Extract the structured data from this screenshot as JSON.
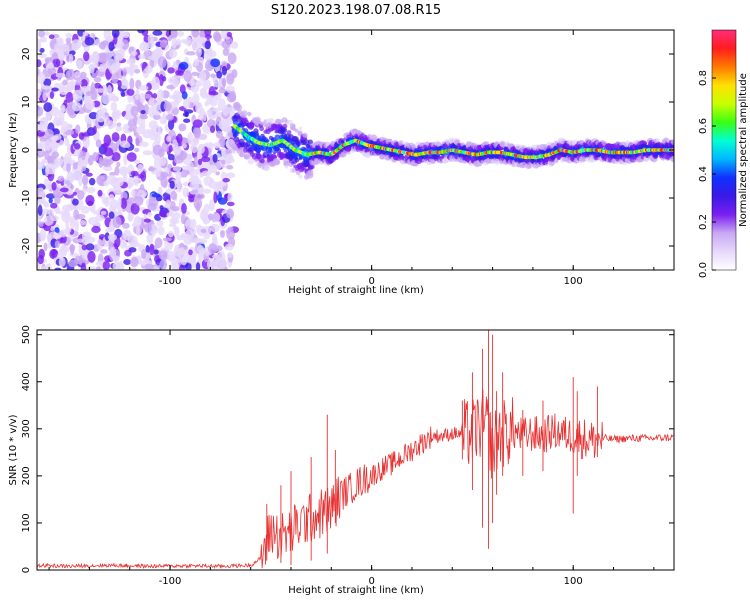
{
  "title": "S120.2023.198.07.08.R15",
  "chart_data": [
    {
      "type": "heatmap",
      "title": "S120.2023.198.07.08.R15",
      "xlabel": "Height of straight line (km)",
      "ylabel": "Frequency (Hz)",
      "xlim": [
        -166,
        150
      ],
      "ylim": [
        -25,
        25
      ],
      "xticks": [
        -100,
        0,
        100
      ],
      "yticks": [
        -20,
        -10,
        0,
        10,
        20
      ],
      "grid": false,
      "colorbar": {
        "label": "Normalized spectral amplitude",
        "range": [
          0,
          1
        ],
        "ticks": [
          0.0,
          0.2,
          0.4,
          0.6,
          0.8
        ],
        "tick_labels": [
          "0.0",
          "0.2",
          "0.4",
          "0.6",
          "0.8"
        ],
        "colormap": [
          "#ffffff",
          "#e6d8fb",
          "#c9a8f4",
          "#7a1ff0",
          "#3a1ae6",
          "#1030ff",
          "#00b7ff",
          "#00ffd5",
          "#39ff14",
          "#c8ff00",
          "#ffe100",
          "#ff7a00",
          "#ff1e1e",
          "#ff2d7a"
        ]
      },
      "noise_region_x": [
        -166,
        -68
      ],
      "signal_trace": {
        "x": [
          -68,
          -62,
          -56,
          -50,
          -44,
          -38,
          -32,
          -26,
          -20,
          -14,
          -8,
          -2,
          4,
          10,
          16,
          22,
          28,
          34,
          40,
          46,
          52,
          58,
          64,
          70,
          76,
          82,
          88,
          94,
          100,
          106,
          112,
          118,
          124,
          130,
          136,
          142,
          150
        ],
        "y": [
          5,
          3,
          1.5,
          1,
          2,
          0,
          -1,
          -0.5,
          -1,
          1,
          2,
          1,
          0.5,
          0,
          -0.5,
          -1,
          -0.5,
          -0.5,
          0,
          -0.5,
          -1,
          -0.5,
          -0.5,
          -1,
          -1.5,
          -1.5,
          -1,
          0,
          -0.5,
          0,
          0,
          -0.5,
          -0.5,
          -0.5,
          0,
          0,
          0
        ]
      }
    },
    {
      "type": "line",
      "xlabel": "Height of straight line (km)",
      "ylabel": "SNR (10 * v/v)",
      "xlim": [
        -166,
        150
      ],
      "ylim": [
        0,
        510
      ],
      "xticks": [
        -100,
        0,
        100
      ],
      "yticks": [
        0,
        100,
        200,
        300,
        400,
        500
      ],
      "grid": false,
      "color": "#e83232",
      "series": [
        {
          "x": [
            -166,
            -150,
            -130,
            -110,
            -90,
            -75,
            -60,
            -55,
            -52,
            -50,
            -45,
            -40,
            -35,
            -30,
            -25,
            -20,
            -15,
            -10,
            -5,
            0,
            5,
            10,
            15,
            20,
            25,
            30,
            35,
            40,
            45,
            50,
            52,
            55,
            58,
            60,
            62,
            65,
            70,
            75,
            80,
            85,
            90,
            95,
            100,
            105,
            110,
            115,
            120,
            130,
            140,
            150
          ],
          "y": [
            10,
            8,
            10,
            8,
            9,
            8,
            10,
            25,
            60,
            85,
            70,
            80,
            100,
            110,
            120,
            130,
            160,
            175,
            190,
            200,
            215,
            225,
            240,
            255,
            270,
            285,
            285,
            290,
            290,
            290,
            300,
            310,
            300,
            250,
            280,
            290,
            295,
            285,
            290,
            285,
            295,
            290,
            285,
            280,
            275,
            280,
            278,
            280,
            280,
            282
          ]
        }
      ],
      "spikes": {
        "x": [
          -52,
          -45,
          -40,
          -30,
          -22,
          -18,
          45,
          50,
          55,
          58,
          60,
          62,
          65,
          75,
          85,
          100,
          102,
          112
        ],
        "top": [
          140,
          180,
          210,
          240,
          330,
          255,
          360,
          420,
          470,
          510,
          500,
          380,
          420,
          340,
          360,
          410,
          380,
          390
        ],
        "bottom": [
          20,
          15,
          10,
          20,
          35,
          100,
          235,
          170,
          90,
          45,
          100,
          160,
          200,
          200,
          210,
          120,
          200,
          240
        ]
      }
    }
  ]
}
